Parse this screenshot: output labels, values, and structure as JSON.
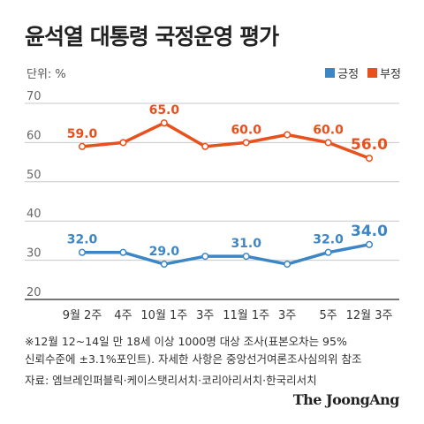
{
  "title": "윤석열 대통령 국정운영 평가",
  "unit_label": "단위: %",
  "legend": [
    {
      "label": "긍정",
      "color": "#3d86c6"
    },
    {
      "label": "부정",
      "color": "#e8501c"
    }
  ],
  "note_lines": [
    "※12월 12~14일 만 18세 이상 1000명 대상 조사(표본오차는 95%",
    "신뢰수준에 ±3.1%포인트). 자세한 사항은 중앙선거여론조사심의위 참조"
  ],
  "source": "자료: 엠브레인퍼블릭·케이스탯리서치·코리아리서치·한국리서치",
  "logo": "The JoongAng",
  "chart_data": {
    "type": "line",
    "x_labels": [
      "9월 2주",
      "",
      "4주",
      "",
      "10월 1주",
      "",
      "3주",
      "",
      "11월 1주",
      "",
      "3주",
      "",
      "5주",
      "",
      "12월 3주"
    ],
    "y_ticks": [
      20,
      30,
      40,
      50,
      60,
      70
    ],
    "ylim": [
      20,
      70
    ],
    "series": [
      {
        "name": "부정",
        "color": "#e8501c",
        "values": [
          59,
          60,
          65,
          59,
          60,
          62,
          60,
          56
        ],
        "labels": [
          "59.0",
          "",
          "65.0",
          "",
          "60.0",
          "",
          "60.0",
          "56.0"
        ]
      },
      {
        "name": "긍정",
        "color": "#3d86c6",
        "values": [
          32,
          32,
          29,
          31,
          31,
          29,
          32,
          34
        ],
        "labels": [
          "32.0",
          "",
          "29.0",
          "",
          "31.0",
          "",
          "32.0",
          "34.0"
        ]
      }
    ]
  }
}
